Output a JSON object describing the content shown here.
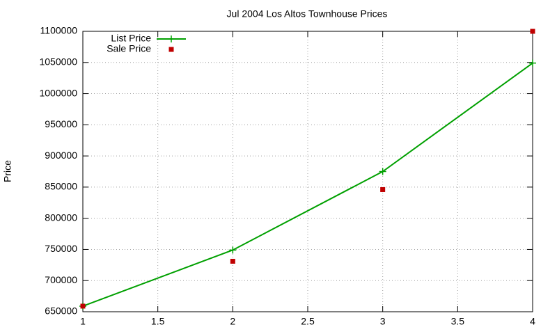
{
  "chart_data": {
    "type": "line",
    "title": "Jul 2004 Los Altos Townhouse Prices",
    "y_label": "Price",
    "x": [
      1,
      2,
      3,
      4
    ],
    "series": [
      {
        "name": "List Price",
        "color": "#00a000",
        "style": "linespoints",
        "values": [
          659000,
          749000,
          875000,
          1049000
        ]
      },
      {
        "name": "Sale Price",
        "color": "#c00000",
        "style": "points",
        "values": [
          659000,
          731000,
          846000,
          1100000
        ]
      }
    ],
    "xlim": [
      1,
      4
    ],
    "xticks": [
      1,
      1.5,
      2,
      2.5,
      3,
      3.5,
      4
    ],
    "ylim": [
      650000,
      1100000
    ],
    "yticks": [
      650000,
      700000,
      750000,
      800000,
      850000,
      900000,
      950000,
      1000000,
      1050000,
      1100000
    ],
    "grid": true,
    "legend": "top-left"
  }
}
